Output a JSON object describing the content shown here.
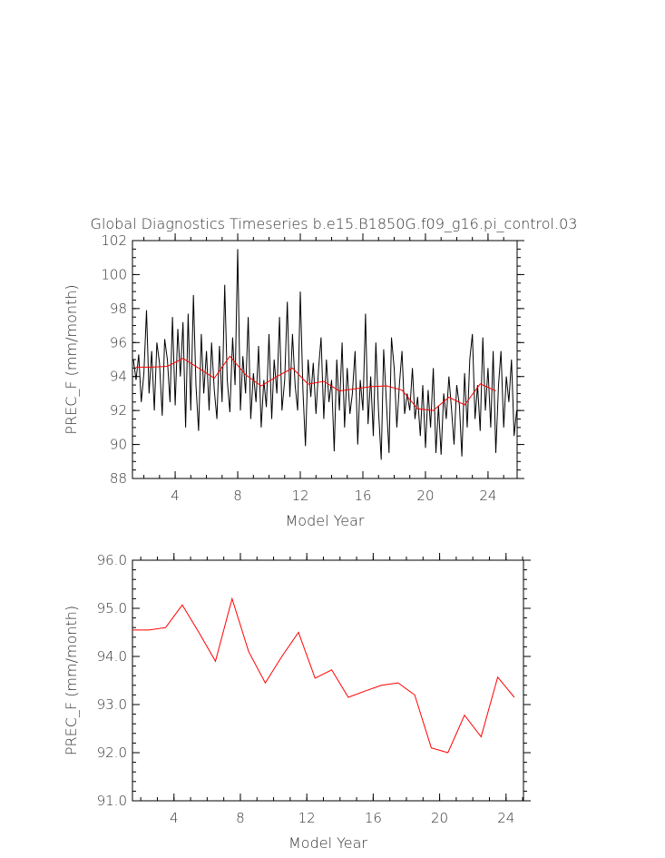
{
  "chart_data": [
    {
      "type": "line",
      "title": "Global Diagnostics Timeseries b.e15.B1850G.f09_g16.pi_control.03",
      "ylabel": "PREC_F (mm/month)",
      "xlabel": "Model Year",
      "xlim": [
        1.27,
        25.86
      ],
      "ylim": [
        88,
        102
      ],
      "xticks": [
        4,
        8,
        12,
        16,
        20,
        24
      ],
      "yticks": [
        88,
        90,
        92,
        94,
        96,
        98,
        100,
        102
      ],
      "series": [
        {
          "color": "#000000",
          "x": [
            1.33,
            1.5,
            1.67,
            1.83,
            2.0,
            2.17,
            2.33,
            2.5,
            2.67,
            2.83,
            3.0,
            3.17,
            3.33,
            3.5,
            3.67,
            3.83,
            4.0,
            4.17,
            4.33,
            4.5,
            4.67,
            4.83,
            5.0,
            5.17,
            5.33,
            5.5,
            5.67,
            5.83,
            6.0,
            6.17,
            6.33,
            6.5,
            6.67,
            6.83,
            7.0,
            7.17,
            7.33,
            7.5,
            7.67,
            7.83,
            8.0,
            8.17,
            8.33,
            8.5,
            8.67,
            8.83,
            9.0,
            9.17,
            9.33,
            9.5,
            9.67,
            9.83,
            10.0,
            10.17,
            10.33,
            10.5,
            10.67,
            10.83,
            11.0,
            11.17,
            11.33,
            11.5,
            11.67,
            11.83,
            12.0,
            12.17,
            12.33,
            12.5,
            12.67,
            12.83,
            13.0,
            13.17,
            13.33,
            13.5,
            13.67,
            13.83,
            14.0,
            14.17,
            14.33,
            14.5,
            14.67,
            14.83,
            15.0,
            15.17,
            15.33,
            15.5,
            15.67,
            15.83,
            16.0,
            16.17,
            16.33,
            16.5,
            16.67,
            16.83,
            17.0,
            17.17,
            17.33,
            17.5,
            17.67,
            17.83,
            18.0,
            18.17,
            18.33,
            18.5,
            18.67,
            18.83,
            19.0,
            19.17,
            19.33,
            19.5,
            19.67,
            19.83,
            20.0,
            20.17,
            20.33,
            20.5,
            20.67,
            20.83,
            21.0,
            21.17,
            21.33,
            21.5,
            21.67,
            21.83,
            22.0,
            22.17,
            22.33,
            22.5,
            22.67,
            22.83,
            23.0,
            23.17,
            23.33,
            23.5,
            23.67,
            23.83,
            24.0,
            24.17,
            24.33,
            24.5,
            24.67,
            24.83,
            25.0,
            25.17,
            25.33,
            25.5,
            25.67,
            25.83
          ],
          "values": [
            95.0,
            93.8,
            95.3,
            92.5,
            94.2,
            97.9,
            93.0,
            95.5,
            92.0,
            96.0,
            94.8,
            91.7,
            96.2,
            95.0,
            92.5,
            97.5,
            92.3,
            96.8,
            94.0,
            97.2,
            91.0,
            97.7,
            92.0,
            98.8,
            93.5,
            90.8,
            96.5,
            93.0,
            95.5,
            92.0,
            96.0,
            93.2,
            91.5,
            95.8,
            92.5,
            99.4,
            93.8,
            91.9,
            96.3,
            93.5,
            101.5,
            92.0,
            95.2,
            93.0,
            97.5,
            91.5,
            94.2,
            92.5,
            95.8,
            91.0,
            93.8,
            92.2,
            96.5,
            91.5,
            95.0,
            93.0,
            97.5,
            92.0,
            93.8,
            98.4,
            92.8,
            96.5,
            93.5,
            92.0,
            99.0,
            93.2,
            89.9,
            95.0,
            92.8,
            94.8,
            91.8,
            94.5,
            96.3,
            91.5,
            95.0,
            92.5,
            93.8,
            89.6,
            95.0,
            92.0,
            96.0,
            91.0,
            94.5,
            91.8,
            93.0,
            95.5,
            90.0,
            93.8,
            92.0,
            97.7,
            91.2,
            94.0,
            90.5,
            96.0,
            92.0,
            89.1,
            95.6,
            92.5,
            89.5,
            96.3,
            94.5,
            91.0,
            93.5,
            95.5,
            91.8,
            93.0,
            92.0,
            94.5,
            91.5,
            92.8,
            90.5,
            93.5,
            89.8,
            93.2,
            91.0,
            94.5,
            89.5,
            92.3,
            89.4,
            93.0,
            91.5,
            94.0,
            92.0,
            90.0,
            93.5,
            92.3,
            89.3,
            94.2,
            91.0,
            95.0,
            96.5,
            91.5,
            93.5,
            90.8,
            96.3,
            92.0,
            94.5,
            91.0,
            95.5,
            89.5,
            93.5,
            95.5,
            91.0,
            94.0,
            92.5,
            95.0,
            90.5,
            92.0
          ]
        },
        {
          "color": "#ff0000",
          "x": [
            1.5,
            2.5,
            3.5,
            4.5,
            5.5,
            6.5,
            7.5,
            8.5,
            9.5,
            10.5,
            11.5,
            12.5,
            13.5,
            14.5,
            15.5,
            16.5,
            17.5,
            18.5,
            19.5,
            20.5,
            21.5,
            22.5,
            23.5,
            24.5
          ],
          "values": [
            94.55,
            94.55,
            94.6,
            95.07,
            94.5,
            93.9,
            95.2,
            94.1,
            93.45,
            94.0,
            94.5,
            93.55,
            93.72,
            93.15,
            93.28,
            93.4,
            93.45,
            93.2,
            92.1,
            92.0,
            92.78,
            92.33,
            93.57,
            93.15
          ]
        }
      ]
    },
    {
      "type": "line",
      "ylabel": "PREC_F (mm/month)",
      "xlabel": "Model Year",
      "xlim": [
        1.5,
        25.05
      ],
      "ylim": [
        91,
        96
      ],
      "xticks": [
        4,
        8,
        12,
        16,
        20,
        24
      ],
      "yticks": [
        {
          "value": 91,
          "label": "91.0"
        },
        {
          "value": 92,
          "label": "92.0"
        },
        {
          "value": 93,
          "label": "93.0"
        },
        {
          "value": 94,
          "label": "94.0"
        },
        {
          "value": 95,
          "label": "95.0"
        },
        {
          "value": 96,
          "label": "96.0"
        }
      ],
      "series": [
        {
          "color": "#ff0000",
          "x": [
            1.5,
            2.5,
            3.5,
            4.5,
            5.5,
            6.5,
            7.5,
            8.5,
            9.5,
            10.5,
            11.5,
            12.5,
            13.5,
            14.5,
            15.5,
            16.5,
            17.5,
            18.5,
            19.5,
            20.5,
            21.5,
            22.5,
            23.5,
            24.5
          ],
          "values": [
            94.55,
            94.55,
            94.6,
            95.07,
            94.5,
            93.9,
            95.2,
            94.1,
            93.45,
            94.0,
            94.5,
            93.55,
            93.72,
            93.15,
            93.28,
            93.4,
            93.45,
            93.2,
            92.1,
            92.0,
            92.78,
            92.33,
            93.57,
            93.15
          ]
        }
      ]
    }
  ]
}
